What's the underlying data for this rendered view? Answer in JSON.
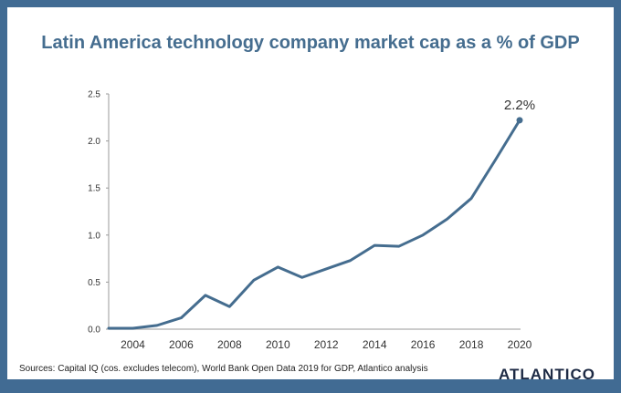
{
  "chart_data": {
    "type": "line",
    "title": "Latin America technology company market cap as a % of GDP",
    "xlabel": "",
    "ylabel": "",
    "x": [
      2003,
      2004,
      2005,
      2006,
      2007,
      2008,
      2009,
      2010,
      2011,
      2012,
      2013,
      2014,
      2015,
      2016,
      2017,
      2018,
      2019,
      2020
    ],
    "series": [
      {
        "name": "Market cap % of GDP",
        "values": [
          0.01,
          0.01,
          0.04,
          0.12,
          0.36,
          0.24,
          0.52,
          0.66,
          0.55,
          0.64,
          0.73,
          0.89,
          0.88,
          1.0,
          1.17,
          1.39,
          1.8,
          2.22
        ],
        "color": "#456d8f"
      }
    ],
    "ylim": [
      0,
      2.5
    ],
    "xlim": [
      2003,
      2020
    ],
    "yticks": [
      "0.0",
      "0.5",
      "1.0",
      "1.5",
      "2.0",
      "2.5"
    ],
    "xticks": [
      "2004",
      "2006",
      "2008",
      "2010",
      "2012",
      "2014",
      "2016",
      "2018",
      "2020"
    ],
    "grid": false,
    "legend": "none",
    "annotations": [
      {
        "x": 2020,
        "text": "2.2%"
      }
    ]
  },
  "footer": {
    "source": "Sources: Capital IQ (cos. excludes telecom), World Bank Open Data 2019 for GDP, Atlantico analysis",
    "logo": "ATLANTICO"
  },
  "colors": {
    "frame": "#416b93",
    "title": "#456d8f",
    "line": "#456d8f",
    "logo": "#1d2a44"
  }
}
